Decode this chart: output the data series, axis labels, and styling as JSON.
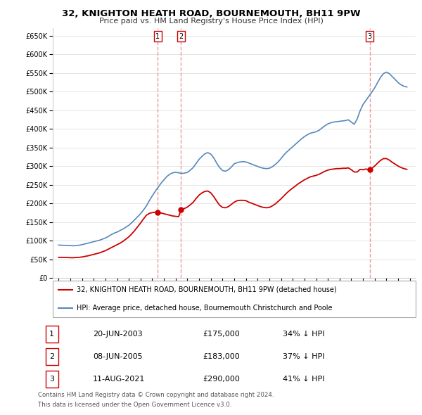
{
  "title": "32, KNIGHTON HEATH ROAD, BOURNEMOUTH, BH11 9PW",
  "subtitle": "Price paid vs. HM Land Registry's House Price Index (HPI)",
  "yticks": [
    0,
    50000,
    100000,
    150000,
    200000,
    250000,
    300000,
    350000,
    400000,
    450000,
    500000,
    550000,
    600000,
    650000
  ],
  "sale_year_nums": [
    2003.458,
    2005.458,
    2021.583
  ],
  "sale_prices": [
    175000,
    183000,
    290000
  ],
  "sale_labels": [
    "1",
    "2",
    "3"
  ],
  "legend_line1": "32, KNIGHTON HEATH ROAD, BOURNEMOUTH, BH11 9PW (detached house)",
  "legend_line2": "HPI: Average price, detached house, Bournemouth Christchurch and Poole",
  "table_rows": [
    [
      "1",
      "20-JUN-2003",
      "£175,000",
      "34% ↓ HPI"
    ],
    [
      "2",
      "08-JUN-2005",
      "£183,000",
      "37% ↓ HPI"
    ],
    [
      "3",
      "11-AUG-2021",
      "£290,000",
      "41% ↓ HPI"
    ]
  ],
  "footnote1": "Contains HM Land Registry data © Crown copyright and database right 2024.",
  "footnote2": "This data is licensed under the Open Government Licence v3.0.",
  "line_color_red": "#cc0000",
  "line_color_blue": "#5588bb",
  "vline_color": "#ee9999",
  "background_color": "#ffffff",
  "grid_color": "#e0e0e0",
  "xlim": [
    1994.5,
    2025.5
  ],
  "ylim": [
    0,
    670000
  ]
}
